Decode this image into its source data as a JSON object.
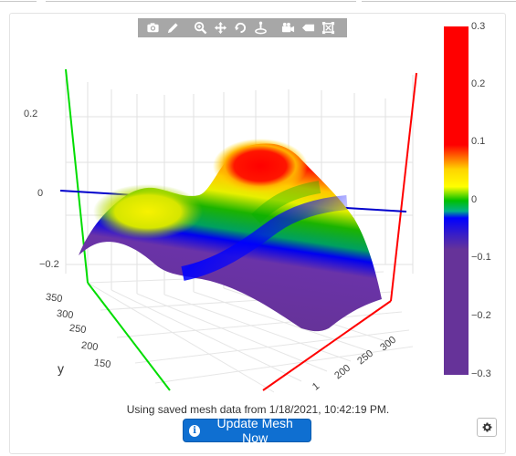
{
  "modebar": {
    "icons": [
      "camera-icon",
      "pencil-icon",
      "zoom-icon",
      "pan-icon",
      "orbit-icon",
      "turntable-icon",
      "video-camera-icon",
      "tag-icon",
      "reset-axes-icon"
    ]
  },
  "colorbar": {
    "ticks": [
      "0.3",
      "0.2",
      "0.1",
      "0",
      "−0.1",
      "−0.2",
      "−0.3"
    ],
    "colors": [
      "#ff0000",
      "#ff0000",
      "#ffff00",
      "#00c000",
      "#0000ff",
      "#663399",
      "#663399"
    ]
  },
  "axes": {
    "z_ticks": [
      "0.2",
      "0",
      "−0.2"
    ],
    "y_ticks": [
      "350",
      "300",
      "250",
      "200",
      "150"
    ],
    "y_label": "y",
    "x_ticks": [
      "300",
      "250",
      "200",
      "1"
    ],
    "x_color": "#ff0000",
    "y_color": "#00dd00",
    "z_plane_color": "#0000cc"
  },
  "footer": {
    "status": "Using saved mesh data from 1/18/2021, 10:42:19 PM.",
    "update_label": "Update Mesh Now",
    "info_glyph": "i"
  }
}
